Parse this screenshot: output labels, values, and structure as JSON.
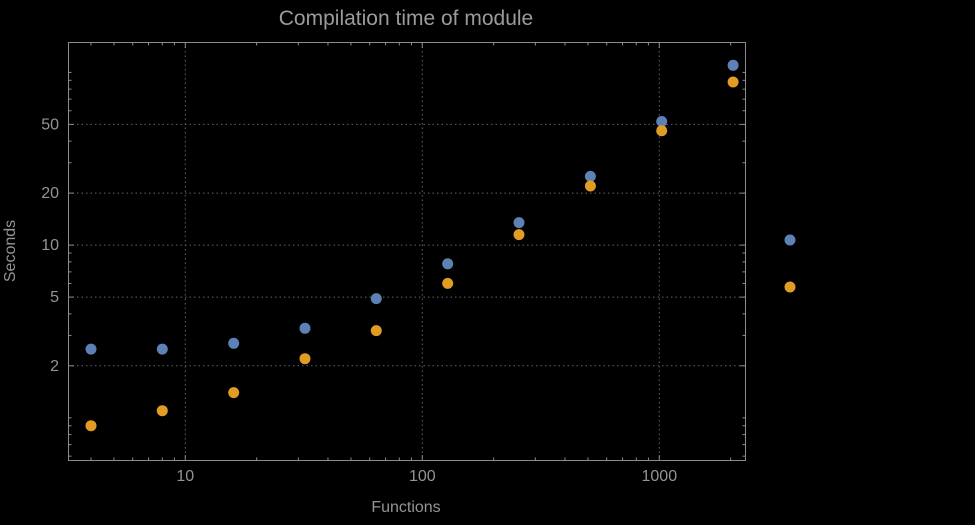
{
  "chart_data": {
    "type": "scatter",
    "title": "Compilation time of module",
    "xlabel": "Functions",
    "ylabel": "Seconds",
    "x_scale": "log",
    "y_scale": "log",
    "xlim": [
      3.2,
      2300
    ],
    "ylim": [
      0.57,
      150
    ],
    "grid": "major-dotted",
    "legend_position": "right-of-frame",
    "x_ticks": [
      {
        "value": 10,
        "label": "10"
      },
      {
        "value": 100,
        "label": "100"
      },
      {
        "value": 1000,
        "label": "1000"
      }
    ],
    "y_ticks": [
      {
        "value": 2,
        "label": "2"
      },
      {
        "value": 5,
        "label": "5"
      },
      {
        "value": 10,
        "label": "10"
      },
      {
        "value": 20,
        "label": "20"
      },
      {
        "value": 50,
        "label": "50"
      }
    ],
    "x": [
      4,
      8,
      16,
      32,
      64,
      128,
      256,
      512,
      1024,
      2048
    ],
    "series": [
      {
        "name": "blue",
        "color": "#5E81B5",
        "values": [
          2.5,
          2.5,
          2.7,
          3.3,
          4.9,
          7.8,
          13.5,
          25,
          52,
          110
        ]
      },
      {
        "name": "orange",
        "color": "#E19C24",
        "values": [
          0.9,
          1.1,
          1.4,
          2.2,
          3.2,
          6.0,
          11.5,
          22,
          46,
          88
        ]
      }
    ],
    "background": "#000000",
    "frame_color": "#8c8c8c",
    "grid_color": "#636363",
    "text_color": "#949494",
    "title_color": "#9b9b9b"
  }
}
